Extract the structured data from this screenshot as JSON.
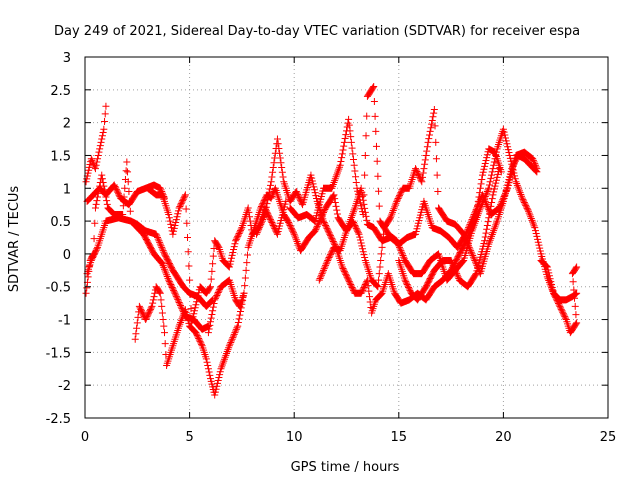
{
  "chart_data": {
    "type": "scatter",
    "title": "Day 249 of 2021, Sidereal Day-to-day VTEC variation (SDTVAR) for receiver espa",
    "xlabel": "GPS time / hours",
    "ylabel": "SDTVAR / TECUs",
    "xlim": [
      0,
      25
    ],
    "ylim": [
      -2.5,
      3
    ],
    "grid": true,
    "marker": "+",
    "x_ticks": [
      0,
      5,
      10,
      15,
      20,
      25
    ],
    "x_tick_labels": [
      "0",
      "5",
      "10",
      "15",
      "20",
      "25"
    ],
    "y_ticks": [
      -2.5,
      -2,
      -1.5,
      -1,
      -0.5,
      0,
      0.5,
      1,
      1.5,
      2,
      2.5,
      3
    ],
    "y_tick_labels": [
      "-2.5",
      "-2",
      "-1.5",
      "-1",
      "-0.5",
      "0",
      "0.5",
      "1",
      "1.5",
      "2",
      "2.5",
      "3"
    ],
    "series_color": "#ff0000",
    "tracks": [
      {
        "name": "track-a",
        "points": [
          [
            0.05,
            1.1
          ],
          [
            0.3,
            1.45
          ],
          [
            0.5,
            1.3
          ],
          [
            0.7,
            1.6
          ],
          [
            0.9,
            1.9
          ],
          [
            1.0,
            2.25
          ]
        ]
      },
      {
        "name": "track-b",
        "points": [
          [
            0.1,
            0.8
          ],
          [
            0.4,
            0.9
          ],
          [
            0.7,
            1.0
          ],
          [
            1.0,
            0.9
          ],
          [
            1.4,
            1.05
          ],
          [
            1.7,
            0.85
          ],
          [
            2.1,
            0.75
          ],
          [
            2.5,
            0.95
          ],
          [
            2.9,
            1.0
          ],
          [
            3.3,
            1.05
          ],
          [
            3.6,
            1.0
          ],
          [
            3.8,
            0.85
          ]
        ]
      },
      {
        "name": "track-c",
        "points": [
          [
            0.05,
            -0.6
          ],
          [
            0.25,
            -0.1
          ],
          [
            0.4,
            0.0
          ],
          [
            0.5,
            0.7
          ],
          [
            0.8,
            1.2
          ],
          [
            1.1,
            0.7
          ],
          [
            1.4,
            0.6
          ],
          [
            1.8,
            0.6
          ],
          [
            2.0,
            1.4
          ],
          [
            2.2,
            0.5
          ],
          [
            2.5,
            0.45
          ],
          [
            2.9,
            0.35
          ],
          [
            3.4,
            0.3
          ],
          [
            3.8,
            0.0
          ],
          [
            4.2,
            -0.25
          ],
          [
            4.7,
            -0.5
          ],
          [
            5.0,
            -0.6
          ],
          [
            5.4,
            -0.65
          ],
          [
            5.8,
            -0.8
          ],
          [
            6.1,
            -0.7
          ]
        ]
      },
      {
        "name": "track-d",
        "points": [
          [
            0.1,
            -0.3
          ],
          [
            0.3,
            -0.1
          ],
          [
            0.6,
            0.1
          ],
          [
            1.0,
            0.5
          ],
          [
            1.6,
            0.55
          ],
          [
            2.2,
            0.5
          ],
          [
            2.8,
            0.3
          ],
          [
            3.3,
            0.0
          ],
          [
            3.7,
            -0.15
          ],
          [
            4.0,
            -0.4
          ],
          [
            4.3,
            -0.6
          ],
          [
            4.8,
            -0.95
          ],
          [
            5.2,
            -1.0
          ],
          [
            5.6,
            -1.15
          ],
          [
            5.9,
            -1.1
          ]
        ]
      },
      {
        "name": "track-e",
        "points": [
          [
            2.4,
            -1.3
          ],
          [
            2.6,
            -0.8
          ],
          [
            2.9,
            -1.0
          ],
          [
            3.2,
            -0.8
          ],
          [
            3.4,
            -0.5
          ],
          [
            3.6,
            -0.6
          ],
          [
            3.8,
            -1.2
          ],
          [
            3.9,
            -1.7
          ],
          [
            4.2,
            -1.4
          ],
          [
            4.5,
            -1.1
          ],
          [
            4.8,
            -0.85
          ],
          [
            5.0,
            -1.1
          ],
          [
            5.3,
            -1.2
          ],
          [
            5.6,
            -1.4
          ],
          [
            5.8,
            -1.6
          ],
          [
            6.0,
            -1.9
          ],
          [
            6.2,
            -2.15
          ],
          [
            6.5,
            -1.75
          ],
          [
            6.9,
            -1.4
          ],
          [
            7.3,
            -1.1
          ],
          [
            7.6,
            -0.6
          ]
        ]
      },
      {
        "name": "track-f",
        "points": [
          [
            3.0,
            1.0
          ],
          [
            3.4,
            0.9
          ],
          [
            3.7,
            0.9
          ],
          [
            4.0,
            0.6
          ],
          [
            4.2,
            0.3
          ],
          [
            4.5,
            0.7
          ],
          [
            4.8,
            0.9
          ],
          [
            5.1,
            -1.05
          ],
          [
            5.5,
            -0.5
          ],
          [
            5.8,
            -0.6
          ],
          [
            6.0,
            -0.5
          ],
          [
            6.2,
            0.2
          ],
          [
            6.4,
            0.1
          ],
          [
            6.6,
            -0.1
          ],
          [
            6.9,
            -0.2
          ],
          [
            7.2,
            0.2
          ],
          [
            7.5,
            0.4
          ],
          [
            7.8,
            0.7
          ],
          [
            8.0,
            0.3
          ],
          [
            8.3,
            0.4
          ],
          [
            8.6,
            0.7
          ],
          [
            8.9,
            0.5
          ],
          [
            9.2,
            0.3
          ],
          [
            9.6,
            0.8
          ]
        ]
      },
      {
        "name": "track-g",
        "points": [
          [
            5.9,
            -1.2
          ],
          [
            6.2,
            -0.7
          ],
          [
            6.5,
            -0.5
          ],
          [
            6.9,
            -0.4
          ],
          [
            7.2,
            -0.7
          ],
          [
            7.4,
            -0.8
          ],
          [
            7.6,
            -0.6
          ],
          [
            7.8,
            0.1
          ],
          [
            8.1,
            0.4
          ],
          [
            8.4,
            0.7
          ],
          [
            8.7,
            0.9
          ],
          [
            8.9,
            0.85
          ],
          [
            9.1,
            1.0
          ],
          [
            9.3,
            0.8
          ],
          [
            9.5,
            0.6
          ],
          [
            9.7,
            0.5
          ],
          [
            10.0,
            0.3
          ],
          [
            10.3,
            0.05
          ],
          [
            10.7,
            0.25
          ],
          [
            11.0,
            0.35
          ],
          [
            11.5,
            0.7
          ],
          [
            11.9,
            0.9
          ],
          [
            12.1,
            0.55
          ],
          [
            12.5,
            0.35
          ],
          [
            12.9,
            0.7
          ],
          [
            13.2,
            1.0
          ],
          [
            13.5,
            0.45
          ],
          [
            13.8,
            0.4
          ],
          [
            14.2,
            0.2
          ],
          [
            14.6,
            0.25
          ],
          [
            15.0,
            0.15
          ],
          [
            15.4,
            0.25
          ],
          [
            15.8,
            0.3
          ],
          [
            16.2,
            0.8
          ],
          [
            16.6,
            0.4
          ],
          [
            17.0,
            0.35
          ],
          [
            17.4,
            0.25
          ],
          [
            17.8,
            0.1
          ],
          [
            18.2,
            0.3
          ],
          [
            18.6,
            0.6
          ],
          [
            19.0,
            0.9
          ],
          [
            19.4,
            0.6
          ],
          [
            19.8,
            0.7
          ],
          [
            20.2,
            1.0
          ],
          [
            20.6,
            1.5
          ],
          [
            21.0,
            1.55
          ],
          [
            21.4,
            1.45
          ],
          [
            21.6,
            1.3
          ]
        ]
      },
      {
        "name": "track-h",
        "points": [
          [
            8.2,
            0.3
          ],
          [
            8.6,
            0.6
          ],
          [
            8.9,
            1.1
          ],
          [
            9.2,
            1.75
          ],
          [
            9.5,
            1.1
          ],
          [
            9.8,
            0.8
          ],
          [
            10.1,
            0.95
          ],
          [
            10.4,
            0.75
          ],
          [
            10.8,
            1.2
          ],
          [
            11.1,
            0.8
          ],
          [
            11.4,
            0.5
          ],
          [
            11.7,
            0.3
          ],
          [
            12.0,
            0.1
          ],
          [
            12.3,
            -0.2
          ],
          [
            12.6,
            -0.4
          ],
          [
            12.9,
            -0.6
          ],
          [
            13.2,
            -0.6
          ],
          [
            13.5,
            -0.4
          ],
          [
            13.7,
            -0.9
          ],
          [
            13.9,
            -0.7
          ],
          [
            14.2,
            -0.6
          ],
          [
            14.5,
            -0.3
          ],
          [
            14.8,
            -0.6
          ],
          [
            15.1,
            -0.75
          ],
          [
            15.5,
            -0.7
          ],
          [
            15.9,
            -0.6
          ],
          [
            16.3,
            -0.7
          ],
          [
            16.7,
            -0.5
          ],
          [
            17.1,
            -0.4
          ],
          [
            17.5,
            -0.25
          ],
          [
            17.9,
            0.0
          ],
          [
            18.3,
            0.25
          ],
          [
            18.7,
            0.6
          ],
          [
            19.0,
            1.2
          ],
          [
            19.3,
            1.6
          ],
          [
            19.6,
            1.55
          ],
          [
            19.9,
            1.25
          ]
        ]
      },
      {
        "name": "track-i",
        "points": [
          [
            9.8,
            0.7
          ],
          [
            10.2,
            0.55
          ],
          [
            10.6,
            0.6
          ],
          [
            11.0,
            0.5
          ],
          [
            11.4,
            1.0
          ],
          [
            11.8,
            1.0
          ],
          [
            12.2,
            1.35
          ],
          [
            12.6,
            2.05
          ],
          [
            13.0,
            1.0
          ],
          [
            13.3,
            0.6
          ],
          [
            13.5,
            2.4
          ],
          [
            13.8,
            2.55
          ],
          [
            14.1,
            0.5
          ],
          [
            14.5,
            0.3
          ],
          [
            14.9,
            0.2
          ],
          [
            15.3,
            -0.1
          ],
          [
            15.7,
            -0.3
          ],
          [
            16.1,
            -0.3
          ],
          [
            16.5,
            -0.1
          ],
          [
            16.9,
            0.0
          ],
          [
            17.3,
            -0.4
          ],
          [
            17.7,
            -0.25
          ],
          [
            18.1,
            -0.1
          ],
          [
            18.5,
            0.35
          ],
          [
            18.9,
            0.7
          ],
          [
            19.3,
            1.0
          ],
          [
            19.7,
            1.6
          ],
          [
            20.0,
            1.9
          ],
          [
            20.3,
            1.5
          ],
          [
            20.6,
            1.1
          ],
          [
            20.9,
            0.85
          ],
          [
            21.2,
            0.65
          ],
          [
            21.5,
            0.4
          ],
          [
            21.8,
            0.0
          ],
          [
            22.1,
            -0.35
          ],
          [
            22.4,
            -0.6
          ],
          [
            22.7,
            -0.7
          ],
          [
            23.0,
            -0.7
          ],
          [
            23.3,
            -0.65
          ],
          [
            23.5,
            -0.6
          ]
        ]
      },
      {
        "name": "track-j",
        "points": [
          [
            11.2,
            -0.4
          ],
          [
            11.6,
            -0.1
          ],
          [
            11.9,
            0.1
          ],
          [
            12.2,
            0.05
          ],
          [
            12.5,
            0.35
          ],
          [
            12.8,
            0.5
          ],
          [
            13.1,
            0.3
          ],
          [
            13.4,
            -0.1
          ],
          [
            13.7,
            -0.4
          ],
          [
            14.0,
            -0.5
          ],
          [
            14.3,
            0.4
          ],
          [
            14.6,
            0.55
          ],
          [
            14.9,
            0.8
          ],
          [
            15.2,
            1.0
          ],
          [
            15.5,
            1.0
          ],
          [
            15.8,
            1.3
          ],
          [
            16.1,
            1.1
          ],
          [
            16.4,
            1.7
          ],
          [
            16.7,
            2.2
          ],
          [
            16.9,
            0.7
          ],
          [
            17.3,
            0.5
          ],
          [
            17.7,
            0.45
          ],
          [
            18.1,
            0.3
          ],
          [
            18.5,
            0.0
          ],
          [
            18.9,
            -0.3
          ],
          [
            19.3,
            0.15
          ],
          [
            19.7,
            0.5
          ],
          [
            20.0,
            0.8
          ],
          [
            20.4,
            1.3
          ],
          [
            20.7,
            1.5
          ],
          [
            21.0,
            1.45
          ],
          [
            21.3,
            1.35
          ],
          [
            21.6,
            1.25
          ]
        ]
      },
      {
        "name": "track-k",
        "points": [
          [
            15.0,
            -0.1
          ],
          [
            15.3,
            -0.4
          ],
          [
            15.6,
            -0.6
          ],
          [
            15.9,
            -0.7
          ],
          [
            16.3,
            -0.5
          ],
          [
            16.7,
            -0.25
          ],
          [
            17.1,
            -0.1
          ],
          [
            17.5,
            -0.1
          ],
          [
            17.9,
            -0.4
          ],
          [
            18.3,
            -0.5
          ],
          [
            18.7,
            -0.3
          ],
          [
            19.1,
            0.2
          ],
          [
            19.5,
            0.9
          ],
          [
            19.8,
            1.3
          ]
        ]
      },
      {
        "name": "track-l",
        "points": [
          [
            21.8,
            -0.1
          ],
          [
            22.1,
            -0.2
          ],
          [
            22.4,
            -0.6
          ],
          [
            22.7,
            -0.8
          ],
          [
            23.0,
            -1.0
          ],
          [
            23.2,
            -1.2
          ],
          [
            23.5,
            -1.05
          ],
          [
            23.3,
            -0.3
          ],
          [
            23.5,
            -0.2
          ]
        ]
      }
    ]
  }
}
